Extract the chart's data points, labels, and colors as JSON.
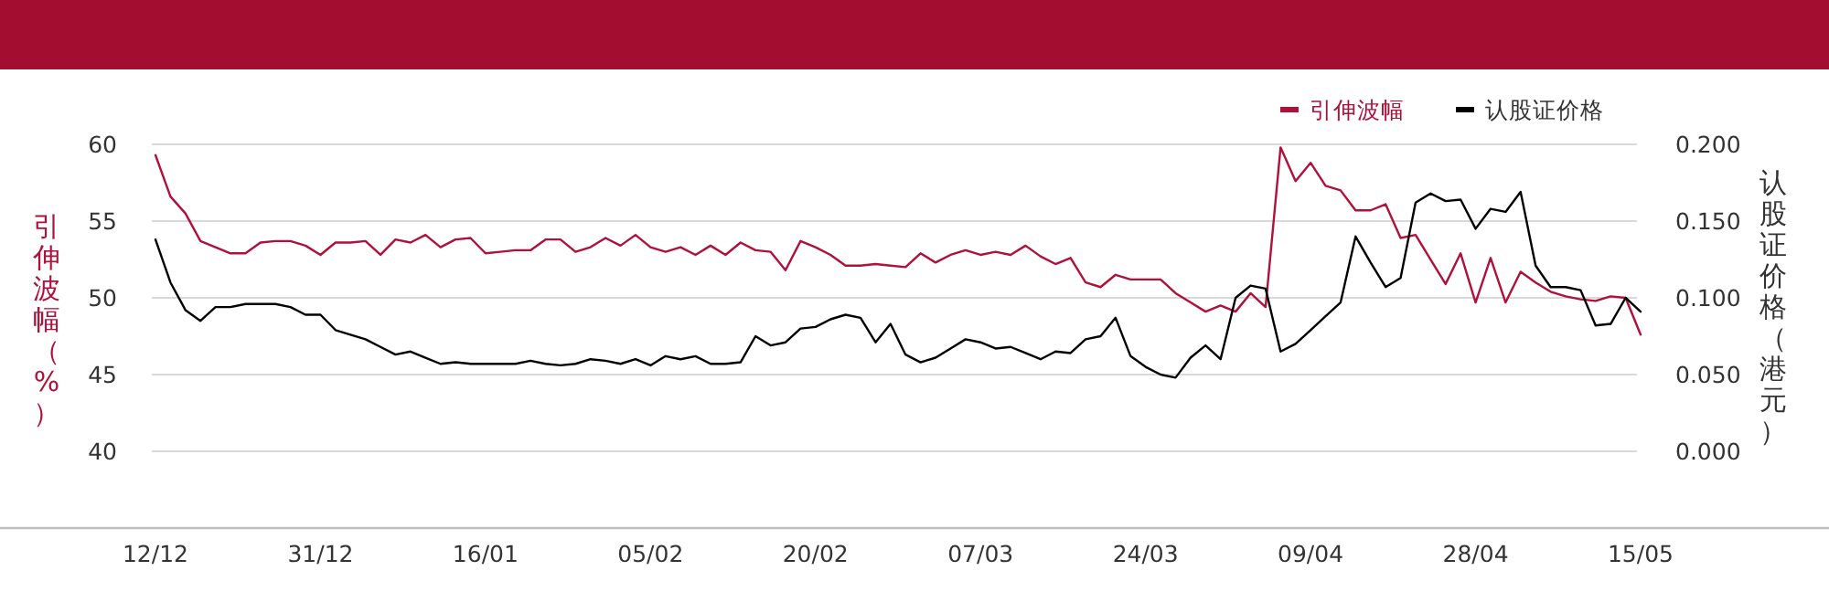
{
  "chart_data": {
    "type": "line",
    "categories": [
      "12/12",
      null,
      null,
      null,
      null,
      null,
      null,
      null,
      null,
      null,
      null,
      "31/12",
      null,
      null,
      null,
      null,
      null,
      null,
      null,
      null,
      null,
      null,
      "16/01",
      null,
      null,
      null,
      null,
      null,
      null,
      null,
      null,
      null,
      null,
      "05/02",
      null,
      null,
      null,
      null,
      null,
      null,
      null,
      null,
      null,
      null,
      "20/02",
      null,
      null,
      null,
      null,
      null,
      null,
      null,
      null,
      null,
      null,
      "07/03",
      null,
      null,
      null,
      null,
      null,
      null,
      null,
      null,
      null,
      null,
      "24/03",
      null,
      null,
      null,
      null,
      null,
      null,
      null,
      null,
      null,
      null,
      "09/04",
      null,
      null,
      null,
      null,
      null,
      null,
      null,
      null,
      null,
      null,
      "28/04",
      null,
      null,
      null,
      null,
      null,
      null,
      null,
      null,
      null,
      null,
      "15/05"
    ],
    "series": [
      {
        "name": "引伸波幅",
        "color": "#b0103a",
        "values": [
          59.3,
          56.6,
          55.5,
          53.7,
          53.3,
          52.9,
          52.9,
          53.6,
          53.7,
          53.7,
          53.4,
          52.8,
          53.6,
          53.6,
          53.7,
          52.8,
          53.8,
          53.6,
          54.1,
          53.3,
          53.8,
          53.9,
          52.9,
          53.0,
          53.1,
          53.1,
          53.8,
          53.8,
          53.0,
          53.3,
          53.9,
          53.4,
          54.1,
          53.3,
          53.0,
          53.3,
          52.8,
          53.4,
          52.8,
          53.6,
          53.1,
          53.0,
          51.8,
          53.7,
          53.3,
          52.8,
          52.1,
          52.1,
          52.2,
          52.1,
          52.0,
          52.9,
          52.3,
          52.8,
          53.1,
          52.8,
          53.0,
          52.8,
          53.4,
          52.7,
          52.2,
          52.6,
          51.0,
          50.7,
          51.5,
          51.2,
          51.2,
          51.2,
          50.3,
          49.7,
          49.1,
          49.5,
          49.1,
          50.3,
          49.4,
          59.8,
          57.6,
          58.8,
          57.3,
          57.0,
          55.7,
          55.7,
          56.1,
          53.9,
          54.1,
          52.5,
          50.9,
          52.9,
          49.7,
          52.6,
          49.7,
          51.7,
          51.0,
          50.4,
          50.1,
          49.9,
          49.8,
          50.1,
          50.0,
          47.6
        ]
      },
      {
        "name": "认股证价格",
        "color": "#000000",
        "axis": "y2",
        "values": [
          0.138,
          0.11,
          0.092,
          0.085,
          0.094,
          0.094,
          0.096,
          0.096,
          0.096,
          0.094,
          0.089,
          0.089,
          0.079,
          0.076,
          0.073,
          0.068,
          0.063,
          0.065,
          0.061,
          0.057,
          0.058,
          0.057,
          0.057,
          0.057,
          0.057,
          0.059,
          0.057,
          0.056,
          0.057,
          0.06,
          0.059,
          0.057,
          0.06,
          0.056,
          0.062,
          0.06,
          0.062,
          0.057,
          0.057,
          0.058,
          0.075,
          0.069,
          0.071,
          0.08,
          0.081,
          0.086,
          0.089,
          0.087,
          0.071,
          0.083,
          0.063,
          0.058,
          0.061,
          0.067,
          0.073,
          0.071,
          0.067,
          0.068,
          0.064,
          0.06,
          0.065,
          0.064,
          0.073,
          0.075,
          0.087,
          0.062,
          0.055,
          0.05,
          0.048,
          0.061,
          0.069,
          0.06,
          0.1,
          0.108,
          0.106,
          0.065,
          0.07,
          0.079,
          0.088,
          0.097,
          0.14,
          0.123,
          0.107,
          0.113,
          0.162,
          0.168,
          0.163,
          0.164,
          0.145,
          0.158,
          0.156,
          0.169,
          0.121,
          0.107,
          0.107,
          0.105,
          0.082,
          0.083,
          0.1,
          0.091
        ]
      }
    ],
    "ylabel": "引伸波幅（%）",
    "y2label": "认股证价格（港元）",
    "ylim": [
      35,
      60
    ],
    "yticks": [
      40,
      45,
      50,
      55,
      60
    ],
    "y2lim": [
      -0.05,
      0.2
    ],
    "y2ticks": [
      {
        "value": 0,
        "label": "0.000"
      },
      {
        "value": 0.05,
        "label": "0.050"
      },
      {
        "value": 0.1,
        "label": "0.100"
      },
      {
        "value": 0.15,
        "label": "0.150"
      },
      {
        "value": 0.2,
        "label": "0.200"
      }
    ],
    "grid": "y",
    "legend": "top right"
  }
}
